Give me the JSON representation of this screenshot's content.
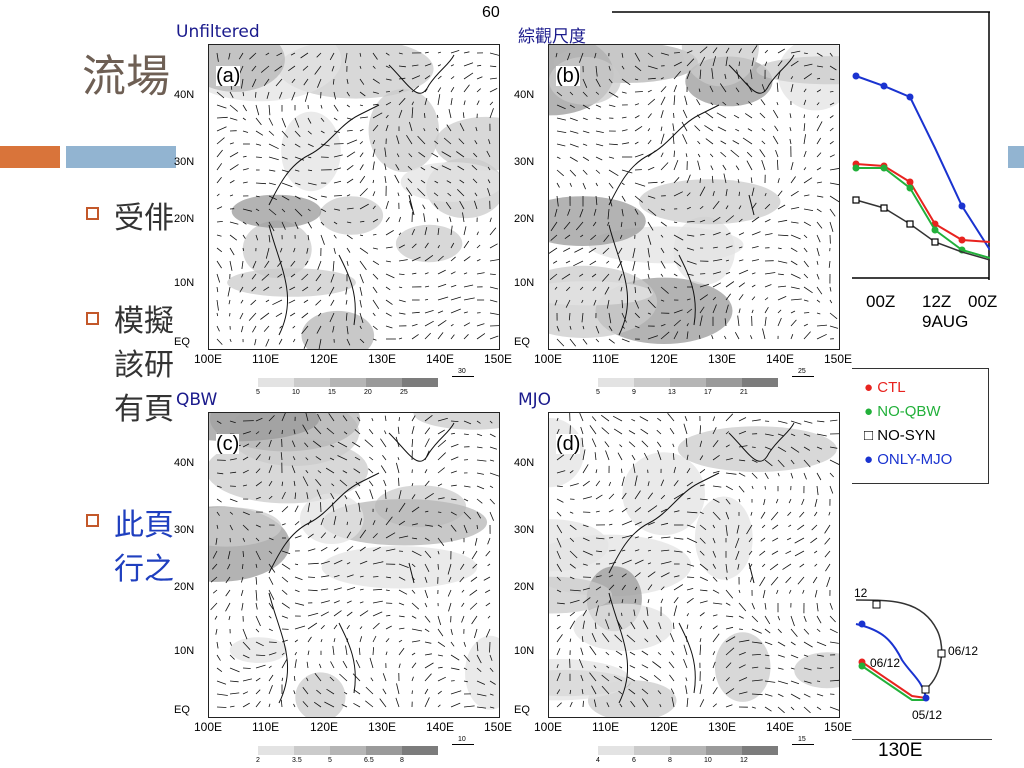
{
  "slide": {
    "title": "流場",
    "bullets": [
      {
        "line1": "受俳",
        "line2": ""
      },
      {
        "line1": "模擬",
        "line2": "該研",
        "line3": "有頁"
      },
      {
        "line1": "此頁",
        "line2": "行之"
      }
    ],
    "colors": {
      "title": "#6e5f54",
      "orange": "#d9743a",
      "blue_bar": "#92b4d1",
      "bullet": "#c3582a",
      "blue_text": "#1f3fbf"
    }
  },
  "figure": {
    "panels": [
      {
        "caption": "Unfiltered",
        "letter": "(a)",
        "colorbar": [
          "5",
          "10",
          "15",
          "20",
          "25"
        ],
        "ref_vector": "30"
      },
      {
        "caption": "綜觀尺度",
        "letter": "(b)",
        "colorbar": [
          "5",
          "9",
          "13",
          "17",
          "21"
        ],
        "ref_vector": "25"
      },
      {
        "caption": "QBW",
        "letter": "(c)",
        "colorbar": [
          "2",
          "3.5",
          "5",
          "6.5",
          "8"
        ],
        "ref_vector": "10"
      },
      {
        "caption": "MJO",
        "letter": "(d)",
        "colorbar": [
          "4",
          "6",
          "8",
          "10",
          "12"
        ],
        "ref_vector": "15"
      }
    ],
    "lat_labels": [
      "40N",
      "30N",
      "20N",
      "10N",
      "EQ"
    ],
    "lon_labels": [
      "100E",
      "110E",
      "120E",
      "130E",
      "140E",
      "150E"
    ],
    "top_tick": "60"
  },
  "right_panel": {
    "time_axis": [
      "00Z",
      "12Z",
      "00Z"
    ],
    "date_label": "9AUG",
    "legend": [
      {
        "label": "CTL",
        "color": "#e8231f",
        "marker": "●"
      },
      {
        "label": "NO-QBW",
        "color": "#22b03a",
        "marker": "●"
      },
      {
        "label": "NO-SYN",
        "color": "#000000",
        "marker": "□"
      },
      {
        "label": "ONLY-MJO",
        "color": "#1a33d0",
        "marker": "●"
      }
    ],
    "track_labels": [
      "12",
      "06/12",
      "06/12",
      "05/12"
    ],
    "track_lon_label": "130E"
  }
}
